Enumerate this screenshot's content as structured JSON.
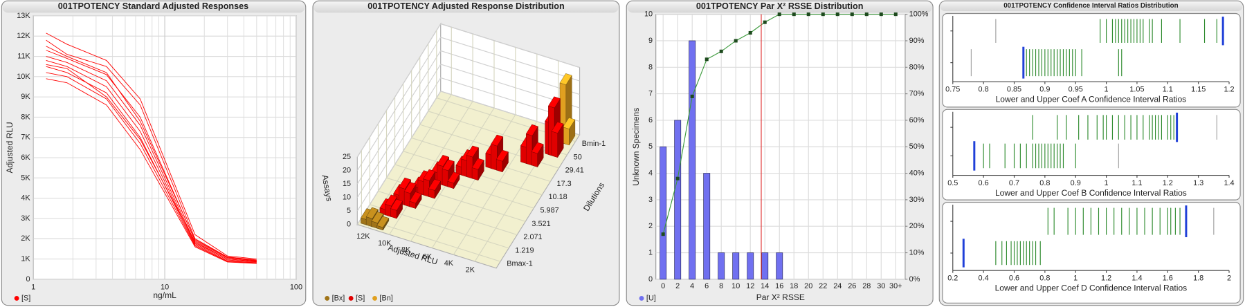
{
  "chart_data": [
    {
      "type": "line",
      "title": "001TPOTENCY Standard Adjusted Responses",
      "x_label": "ng/mL",
      "y_label": "Adjusted RLU",
      "log_x": true,
      "grid": true,
      "color": "#ff0000",
      "legend_label": "[S]",
      "xlim": [
        1,
        100
      ],
      "xticks": [
        1,
        10,
        100
      ],
      "ylim": [
        0,
        13000
      ],
      "yticks": [
        0,
        {
          "value": 1000,
          "label": "1K"
        },
        {
          "value": 2000,
          "label": "2K"
        },
        {
          "value": 3000,
          "label": "3K"
        },
        {
          "value": 4000,
          "label": "4K"
        },
        {
          "value": 5000,
          "label": "5K"
        },
        {
          "value": 6000,
          "label": "6K"
        },
        {
          "value": 7000,
          "label": "7K"
        },
        {
          "value": 8000,
          "label": "8K"
        },
        {
          "value": 9000,
          "label": "9K"
        },
        {
          "value": 10000,
          "label": "10K"
        },
        {
          "value": 11000,
          "label": "11K"
        },
        {
          "value": 12000,
          "label": "12K"
        },
        {
          "value": 13000,
          "label": "13K"
        }
      ],
      "x": [
        1.25,
        1.8,
        3.6,
        6.5,
        17,
        30,
        50
      ],
      "series": [
        {
          "values": [
            12150,
            11600,
            10800,
            8900,
            2200,
            1150,
            1000
          ]
        },
        {
          "values": [
            11800,
            11100,
            10500,
            8600,
            2000,
            1100,
            950
          ]
        },
        {
          "values": [
            11500,
            11000,
            10200,
            7800,
            1950,
            1080,
            920
          ]
        },
        {
          "values": [
            11300,
            10900,
            10100,
            8000,
            1900,
            1050,
            900
          ]
        },
        {
          "values": [
            11000,
            10700,
            9800,
            7600,
            1800,
            1000,
            880
          ]
        },
        {
          "values": [
            10800,
            10500,
            9500,
            7300,
            1750,
            950,
            850
          ]
        },
        {
          "values": [
            10600,
            10400,
            9000,
            6900,
            1850,
            1000,
            870
          ]
        },
        {
          "values": [
            10500,
            10200,
            9200,
            7000,
            1700,
            900,
            820
          ]
        },
        {
          "values": [
            10200,
            10000,
            8900,
            6700,
            1650,
            880,
            800
          ]
        },
        {
          "values": [
            9900,
            9700,
            8600,
            6400,
            1600,
            850,
            780
          ]
        }
      ]
    },
    {
      "type": "bar3d",
      "title": "001TPOTENCY Adjusted Response Distribution",
      "x_label": "Adjusted RLU",
      "y_label": "Dilutions",
      "z_label": "Assays",
      "xlim": [
        13000,
        0
      ],
      "xticks": [
        {
          "value": 12000,
          "label": "12K"
        },
        {
          "value": 10000,
          "label": "10K"
        },
        {
          "value": 8000,
          "label": "8K"
        },
        {
          "value": 6000,
          "label": "6K"
        },
        {
          "value": 4000,
          "label": "4K"
        },
        {
          "value": 2000,
          "label": "2K"
        }
      ],
      "dilutions": [
        "Bmax-1",
        "1.219",
        "2.071",
        "3.521",
        "5.987",
        "10.18",
        "17.3",
        "29.41",
        "50",
        "Bmin-1"
      ],
      "zlim": [
        0,
        25
      ],
      "zticks": [
        0,
        5,
        10,
        15,
        20,
        25
      ],
      "series": [
        {
          "name": "[Bx]",
          "color": "#a07418",
          "rlu": [
            12500,
            12000,
            11500,
            11000
          ],
          "dilution": [
            0,
            0,
            0,
            0
          ],
          "values": [
            2,
            3,
            2,
            1
          ]
        },
        {
          "name": "[S]",
          "color": "#e00000",
          "rlu": [
            11500,
            11000,
            10500,
            11000,
            10500,
            10000,
            9500,
            10000,
            9500,
            9000,
            8500,
            9000,
            8500,
            8000,
            7500,
            7500,
            7000,
            6500,
            6000,
            5500,
            5000,
            4500,
            3000,
            2500,
            2000,
            1500,
            1200,
            900
          ],
          "dilution": [
            1,
            1,
            1,
            2,
            2,
            2,
            2,
            3,
            3,
            3,
            3,
            4,
            4,
            4,
            4,
            5,
            5,
            5,
            5,
            6,
            6,
            6,
            7,
            7,
            7,
            8,
            8,
            8
          ],
          "values": [
            2,
            4,
            3,
            3,
            6,
            5,
            2,
            2,
            5,
            6,
            3,
            4,
            7,
            6,
            2,
            3,
            6,
            8,
            4,
            5,
            9,
            4,
            6,
            11,
            5,
            12,
            18,
            9
          ]
        },
        {
          "name": "[Bn]",
          "color": "#e0a020",
          "rlu": [
            1200,
            900,
            600
          ],
          "dilution": [
            9,
            9,
            9
          ],
          "values": [
            8,
            22,
            6
          ]
        }
      ]
    },
    {
      "type": "bar_line",
      "title": "001TPOTENCY Par X² RSSE Distribution",
      "x_label": "Par X² RSSE",
      "y_label": "Unknown Specimens",
      "grid": true,
      "xlim": [
        -1,
        33.3
      ],
      "xticks": [
        0,
        2,
        4,
        6,
        8,
        10,
        12,
        14,
        16,
        18,
        20,
        22,
        24,
        26,
        28,
        30,
        {
          "value": 32,
          "label": "30+"
        }
      ],
      "x": [
        0,
        2,
        4,
        6,
        8,
        10,
        12,
        14,
        16,
        18,
        20,
        22,
        24,
        26,
        28,
        30,
        32
      ],
      "ylim": [
        0,
        10
      ],
      "yticks": [
        0,
        1,
        2,
        3,
        4,
        5,
        6,
        7,
        8,
        9,
        10
      ],
      "y2lim": [
        0,
        100
      ],
      "y2ticks": [
        {
          "value": 0,
          "label": "0%"
        },
        {
          "value": 10,
          "label": "10%"
        },
        {
          "value": 20,
          "label": "20%"
        },
        {
          "value": 30,
          "label": "30%"
        },
        {
          "value": 40,
          "label": "40%"
        },
        {
          "value": 50,
          "label": "50%"
        },
        {
          "value": 60,
          "label": "60%"
        },
        {
          "value": 70,
          "label": "70%"
        },
        {
          "value": 80,
          "label": "80%"
        },
        {
          "value": 90,
          "label": "90%"
        },
        {
          "value": 100,
          "label": "100%"
        }
      ],
      "threshold": 13.5,
      "threshold_color": "#e03030",
      "series": [
        {
          "name": "[U]",
          "color": "#7070f0",
          "values": [
            5,
            6,
            9,
            4,
            1,
            1,
            1,
            1,
            1,
            0,
            0,
            0,
            0,
            0,
            0,
            0,
            0
          ]
        },
        {
          "axis": "y2",
          "color": "#3c9a3c",
          "marker_color": "#1e4a1e",
          "values": [
            17,
            38,
            69,
            83,
            86,
            90,
            93,
            97,
            100,
            100,
            100,
            100,
            100,
            100,
            100,
            100,
            100
          ]
        }
      ]
    },
    {
      "type": "strip",
      "title": "001TPOTENCY Confidence Interval Ratios Distribution",
      "color": "#2e8b2e",
      "outlier_color": "#a0a0a0",
      "marker_color": "#2040d8",
      "strips": [
        {
          "x_label": "Lower and Upper Coef A Confidence Interval Ratios",
          "xlim": [
            0.75,
            1.2
          ],
          "xticks": [
            0.75,
            0.8,
            0.85,
            0.9,
            0.95,
            1,
            1.05,
            1.1,
            1.15,
            1.2
          ],
          "rows": [
            {
              "values": [
                0.99,
                1.0,
                1.01,
                1.015,
                1.02,
                1.025,
                1.03,
                1.035,
                1.04,
                1.045,
                1.05,
                1.055,
                1.06,
                1.07,
                1.075,
                1.09,
                1.12,
                1.16,
                1.18
              ],
              "outliers": [
                0.82
              ],
              "marker": 1.19
            },
            {
              "values": [
                0.87,
                0.875,
                0.88,
                0.885,
                0.89,
                0.895,
                0.9,
                0.905,
                0.91,
                0.915,
                0.92,
                0.925,
                0.93,
                0.935,
                0.94,
                0.945,
                0.95,
                0.96,
                1.02,
                1.025
              ],
              "outliers": [
                0.78
              ],
              "marker": 0.865
            }
          ]
        },
        {
          "x_label": "Lower and Upper Coef B Confidence Interval Ratios",
          "xlim": [
            0.5,
            1.4
          ],
          "xticks": [
            0.5,
            0.6,
            0.7,
            0.8,
            0.9,
            1,
            1.1,
            1.2,
            1.3,
            1.4
          ],
          "rows": [
            {
              "values": [
                0.76,
                0.84,
                0.87,
                0.91,
                0.94,
                0.97,
                0.99,
                1.0,
                1.02,
                1.04,
                1.06,
                1.08,
                1.1,
                1.12,
                1.14,
                1.15,
                1.16,
                1.17,
                1.18,
                1.2,
                1.21,
                1.22
              ],
              "outliers": [
                1.36
              ],
              "marker": 1.23
            },
            {
              "values": [
                0.6,
                0.62,
                0.67,
                0.7,
                0.72,
                0.74,
                0.76,
                0.77,
                0.78,
                0.79,
                0.8,
                0.81,
                0.82,
                0.83,
                0.84,
                0.85,
                0.86,
                0.9
              ],
              "outliers": [
                1.04
              ],
              "marker": 0.57
            }
          ]
        },
        {
          "x_label": "Lower and Upper Coef D Confidence Interval Ratios",
          "xlim": [
            0.2,
            2
          ],
          "xticks": [
            0.2,
            0.4,
            0.6,
            0.8,
            1,
            1.2,
            1.4,
            1.6,
            1.8,
            2
          ],
          "rows": [
            {
              "values": [
                0.82,
                0.86,
                0.95,
                1.0,
                1.05,
                1.1,
                1.15,
                1.2,
                1.25,
                1.3,
                1.35,
                1.4,
                1.45,
                1.5,
                1.55,
                1.6,
                1.62,
                1.65,
                1.68
              ],
              "outliers": [
                1.9
              ],
              "marker": 1.72
            },
            {
              "values": [
                0.48,
                0.52,
                0.55,
                0.58,
                0.6,
                0.62,
                0.64,
                0.66,
                0.68,
                0.7,
                0.72,
                0.74,
                0.77
              ],
              "marker": 0.27
            }
          ]
        }
      ]
    }
  ]
}
